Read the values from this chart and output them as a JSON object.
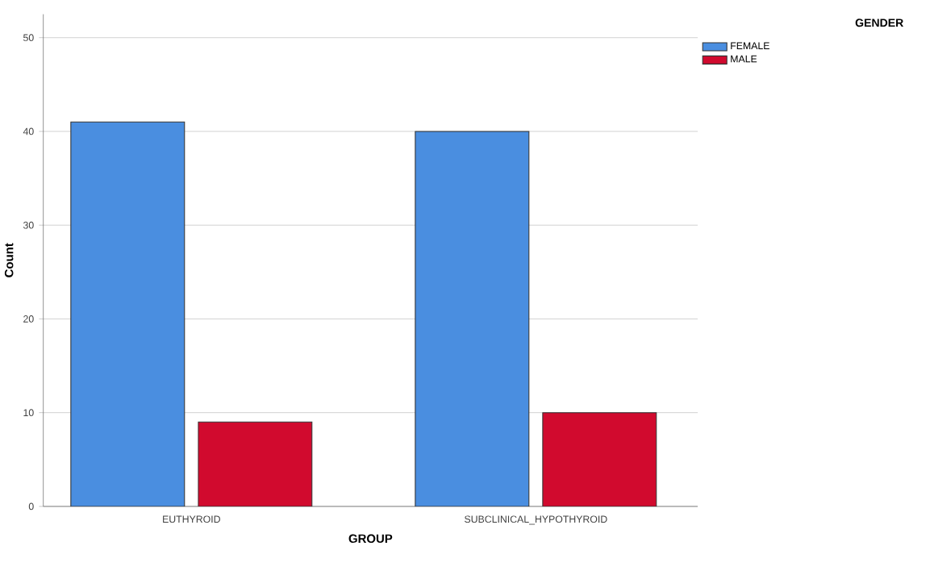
{
  "chart_data": {
    "type": "bar",
    "xlabel": "GROUP",
    "ylabel": "Count",
    "legend_title": "GENDER",
    "categories": [
      "EUTHYROID",
      "SUBCLINICAL_HYPOTHYROID"
    ],
    "series": [
      {
        "name": "FEMALE",
        "color": "#4a8ee0",
        "values": [
          41,
          40
        ]
      },
      {
        "name": "MALE",
        "color": "#d10a2e",
        "values": [
          9,
          10
        ]
      }
    ],
    "ylim": [
      0,
      52.5
    ],
    "yticks": [
      0,
      10,
      20,
      30,
      40,
      50
    ],
    "grid": "y",
    "legend": "top right"
  }
}
